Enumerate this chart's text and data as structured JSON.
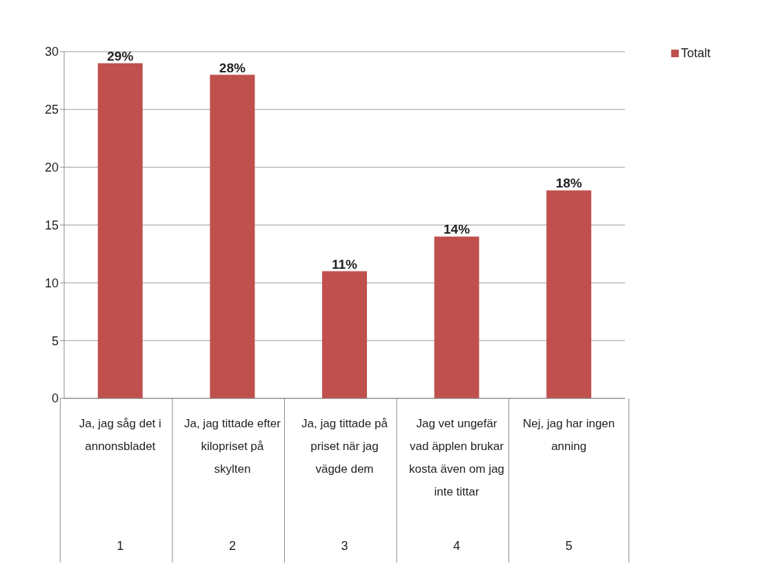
{
  "chart_data": {
    "type": "bar",
    "categories": [
      "Ja, jag såg det i annonsbladet",
      "Ja, jag tittade efter kilopriset på skylten",
      "Ja, jag tittade på priset när jag vägde dem",
      "Jag vet ungefär vad äpplen brukar kosta även om jag inte tittar",
      "Nej, jag har ingen anning"
    ],
    "series": [
      {
        "name": "Totalt",
        "color": "#c0504d",
        "values": [
          29,
          28,
          11,
          14,
          18
        ],
        "value_labels": [
          "29%",
          "28%",
          "11%",
          "14%",
          "18%"
        ]
      }
    ],
    "annotations": [
      "1",
      "2",
      "3",
      "4",
      "5"
    ],
    "ylim": [
      0,
      30
    ],
    "yticks": [
      0,
      5,
      10,
      15,
      20,
      25,
      30
    ],
    "grid": "y",
    "legend": "top right"
  }
}
